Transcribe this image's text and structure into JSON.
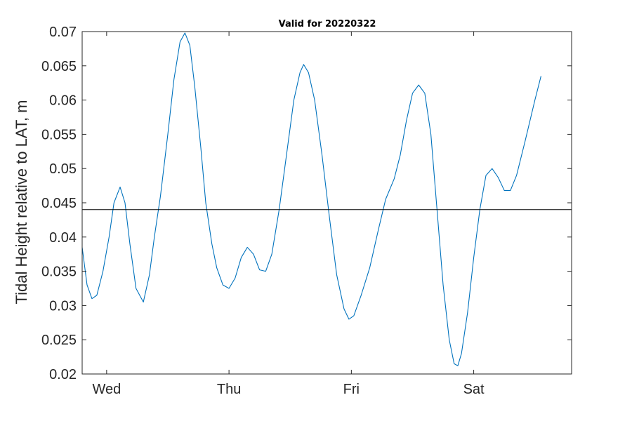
{
  "chart_data": {
    "type": "line",
    "title": "Valid for 20220322",
    "xlabel": "",
    "ylabel": "Tidal Height relative to LAT, m",
    "x_unit": "days",
    "xlim": [
      0,
      4
    ],
    "ylim": [
      0.02,
      0.07
    ],
    "yticks": [
      0.02,
      0.025,
      0.03,
      0.035,
      0.04,
      0.045,
      0.05,
      0.055,
      0.06,
      0.065,
      0.07
    ],
    "ytick_labels": [
      "0.02",
      "0.025",
      "0.03",
      "0.035",
      "0.04",
      "0.045",
      "0.05",
      "0.055",
      "0.06",
      "0.065",
      "0.07"
    ],
    "xticks": [
      0.2,
      1.2,
      2.2,
      3.2
    ],
    "xtick_labels": [
      "Wed",
      "Thu",
      "Fri",
      "Sat"
    ],
    "grid": false,
    "reference_line": {
      "y": 0.044,
      "color": "#000000"
    },
    "series": [
      {
        "color": "#0072BD",
        "points": [
          [
            0.0,
            0.0385
          ],
          [
            0.04,
            0.033
          ],
          [
            0.08,
            0.031
          ],
          [
            0.12,
            0.0315
          ],
          [
            0.17,
            0.035
          ],
          [
            0.22,
            0.04
          ],
          [
            0.26,
            0.045
          ],
          [
            0.31,
            0.0473
          ],
          [
            0.35,
            0.045
          ],
          [
            0.39,
            0.039
          ],
          [
            0.44,
            0.0325
          ],
          [
            0.5,
            0.0305
          ],
          [
            0.55,
            0.0345
          ],
          [
            0.59,
            0.04
          ],
          [
            0.64,
            0.046
          ],
          [
            0.7,
            0.055
          ],
          [
            0.75,
            0.063
          ],
          [
            0.8,
            0.0685
          ],
          [
            0.84,
            0.0698
          ],
          [
            0.88,
            0.068
          ],
          [
            0.92,
            0.062
          ],
          [
            0.97,
            0.053
          ],
          [
            1.01,
            0.045
          ],
          [
            1.06,
            0.039
          ],
          [
            1.1,
            0.0355
          ],
          [
            1.15,
            0.033
          ],
          [
            1.2,
            0.0325
          ],
          [
            1.25,
            0.034
          ],
          [
            1.3,
            0.037
          ],
          [
            1.35,
            0.0385
          ],
          [
            1.4,
            0.0375
          ],
          [
            1.45,
            0.0352
          ],
          [
            1.5,
            0.035
          ],
          [
            1.55,
            0.0375
          ],
          [
            1.61,
            0.044
          ],
          [
            1.67,
            0.052
          ],
          [
            1.73,
            0.06
          ],
          [
            1.78,
            0.064
          ],
          [
            1.81,
            0.0652
          ],
          [
            1.85,
            0.064
          ],
          [
            1.9,
            0.06
          ],
          [
            1.96,
            0.052
          ],
          [
            2.02,
            0.043
          ],
          [
            2.08,
            0.0345
          ],
          [
            2.14,
            0.0295
          ],
          [
            2.18,
            0.028
          ],
          [
            2.22,
            0.0285
          ],
          [
            2.28,
            0.0315
          ],
          [
            2.35,
            0.0355
          ],
          [
            2.42,
            0.041
          ],
          [
            2.48,
            0.0455
          ],
          [
            2.55,
            0.0485
          ],
          [
            2.6,
            0.052
          ],
          [
            2.65,
            0.057
          ],
          [
            2.7,
            0.061
          ],
          [
            2.75,
            0.0622
          ],
          [
            2.8,
            0.061
          ],
          [
            2.85,
            0.055
          ],
          [
            2.9,
            0.044
          ],
          [
            2.95,
            0.033
          ],
          [
            3.0,
            0.025
          ],
          [
            3.04,
            0.0215
          ],
          [
            3.07,
            0.0212
          ],
          [
            3.1,
            0.023
          ],
          [
            3.15,
            0.029
          ],
          [
            3.2,
            0.037
          ],
          [
            3.25,
            0.044
          ],
          [
            3.3,
            0.049
          ],
          [
            3.35,
            0.05
          ],
          [
            3.4,
            0.0487
          ],
          [
            3.45,
            0.0468
          ],
          [
            3.5,
            0.0468
          ],
          [
            3.55,
            0.049
          ],
          [
            3.62,
            0.054
          ],
          [
            3.7,
            0.06
          ],
          [
            3.75,
            0.0635
          ]
        ]
      }
    ]
  }
}
